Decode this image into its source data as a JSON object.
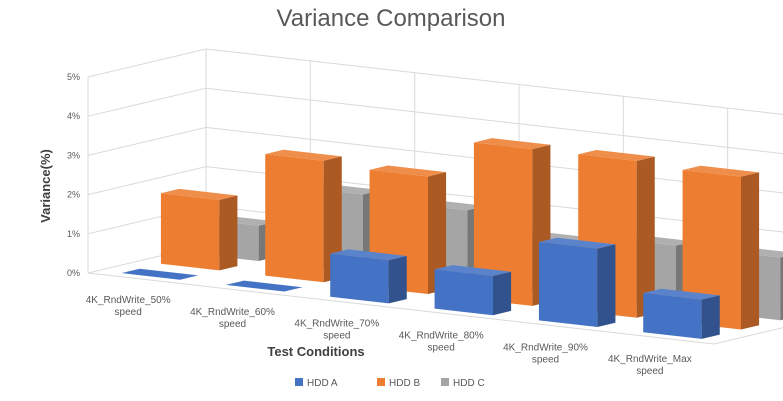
{
  "chart_data": {
    "type": "bar",
    "title": "Variance Comparison",
    "xlabel": "Test Conditions",
    "ylabel": "Variance(%)",
    "ylim": [
      0,
      5
    ],
    "yticks": [
      "0%",
      "1%",
      "2%",
      "3%",
      "4%",
      "5%"
    ],
    "categories": [
      [
        "4K_RndWrite_50%",
        "speed"
      ],
      [
        "4K_RndWrite_60%",
        "speed"
      ],
      [
        "4K_RndWrite_70%",
        "speed"
      ],
      [
        "4K_RndWrite_80%",
        "speed"
      ],
      [
        "4K_RndWrite_90%",
        "speed"
      ],
      [
        "4K_RndWrite_Max",
        "speed"
      ]
    ],
    "series": [
      {
        "name": "HDD A",
        "color": "#4472C4",
        "values": [
          0.0,
          0.0,
          1.1,
          1.0,
          2.0,
          1.0
        ]
      },
      {
        "name": "HDD B",
        "color": "#ED7D31",
        "values": [
          1.8,
          3.1,
          3.0,
          4.0,
          4.0,
          3.9
        ]
      },
      {
        "name": "HDD C",
        "color": "#A5A5A5",
        "values": [
          0.9,
          2.0,
          1.9,
          1.4,
          1.6,
          1.6
        ]
      }
    ],
    "grid": true,
    "legend": "bottom"
  }
}
